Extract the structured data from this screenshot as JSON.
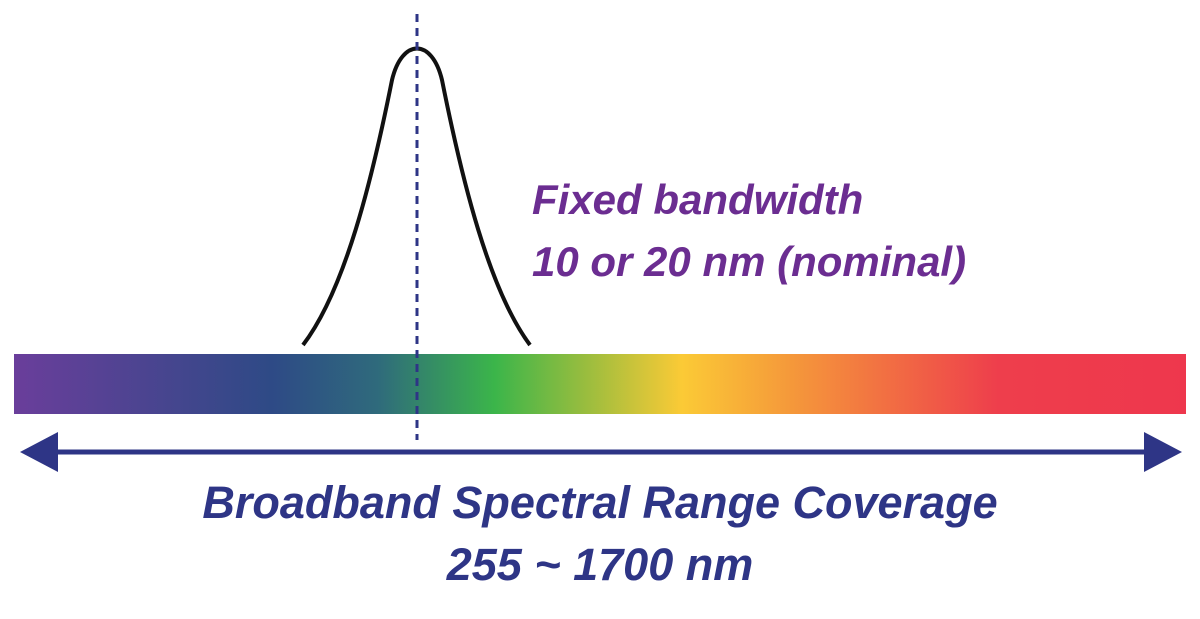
{
  "annotation": {
    "title": "Fixed bandwidth",
    "subtitle": "10 or 20 nm (nominal)"
  },
  "range": {
    "title": "Broadband Spectral Range Coverage",
    "subtitle": "255 ~ 1700 nm"
  }
}
